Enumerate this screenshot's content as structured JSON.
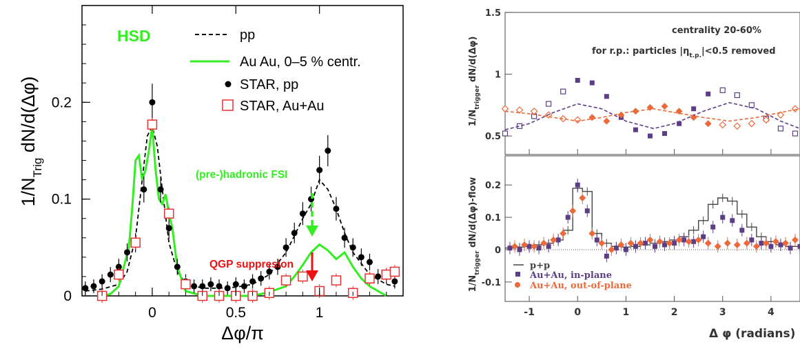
{
  "chart_data": [
    {
      "type": "scatter",
      "title": "",
      "xlabel": "Δφ/π",
      "ylabel": "1/N",
      "ylabel_sub": "Trig",
      "ylabel_rest": " dN/d(Δφ)",
      "xlim": [
        -0.42,
        1.5
      ],
      "ylim": [
        0,
        0.3
      ],
      "xticks": [
        {
          "v": 0,
          "label": "0"
        },
        {
          "v": 0.5,
          "label": "0.5"
        },
        {
          "v": 1,
          "label": "1"
        }
      ],
      "yticks": [
        {
          "v": 0,
          "label": "0"
        },
        {
          "v": 0.1,
          "label": "0.1"
        },
        {
          "v": 0.2,
          "label": "0.2"
        }
      ],
      "model_label": "HSD",
      "legend_placement": "top-right",
      "legend": [
        "pp",
        "Au Au, 0–5 % centr.",
        "STAR, pp",
        "STAR, Au+Au"
      ],
      "annotations": [
        "(pre-)hadronic FSI",
        "QGP suppresion"
      ],
      "colors": {
        "hsd_green": "#33ee22",
        "star_auau": "#e83030",
        "fsi_arrow": "#33ee22",
        "qgp_arrow": "#ee1111"
      },
      "series": [
        {
          "name": "pp",
          "style": "dashed-line",
          "x": [
            -0.4,
            -0.3,
            -0.2,
            -0.15,
            -0.1,
            -0.06,
            -0.03,
            0,
            0.03,
            0.06,
            0.1,
            0.15,
            0.2,
            0.3,
            0.4,
            0.5,
            0.6,
            0.7,
            0.8,
            0.85,
            0.9,
            0.95,
            1.0,
            1.05,
            1.1,
            1.15,
            1.2,
            1.3,
            1.4,
            1.45
          ],
          "y": [
            0.005,
            0.007,
            0.012,
            0.025,
            0.06,
            0.12,
            0.165,
            0.175,
            0.155,
            0.11,
            0.055,
            0.025,
            0.013,
            0.008,
            0.008,
            0.009,
            0.012,
            0.022,
            0.045,
            0.062,
            0.08,
            0.095,
            0.12,
            0.11,
            0.09,
            0.065,
            0.045,
            0.022,
            0.012,
            0.01
          ]
        },
        {
          "name": "Au Au, 0–5 % centr.",
          "style": "solid-line",
          "x": [
            -0.3,
            -0.25,
            -0.2,
            -0.17,
            -0.14,
            -0.12,
            -0.1,
            -0.08,
            -0.06,
            -0.04,
            -0.02,
            0,
            0.02,
            0.04,
            0.06,
            0.08,
            0.1,
            0.12,
            0.15,
            0.2,
            0.3,
            0.5,
            0.6,
            0.7,
            0.8,
            0.85,
            0.9,
            0.95,
            1.0,
            1.05,
            1.1,
            1.15,
            1.2,
            1.25,
            1.3,
            1.4
          ],
          "y": [
            0.0,
            0.002,
            0.01,
            0.03,
            0.05,
            0.09,
            0.14,
            0.145,
            0.12,
            0.13,
            0.15,
            0.175,
            0.13,
            0.1,
            0.095,
            0.105,
            0.085,
            0.07,
            0.03,
            0.005,
            0.0,
            0.0,
            0.0,
            0.004,
            0.01,
            0.02,
            0.032,
            0.045,
            0.053,
            0.047,
            0.038,
            0.045,
            0.03,
            0.018,
            0.01,
            0.0
          ]
        },
        {
          "name": "STAR, pp",
          "style": "filled-circle",
          "x": [
            -0.4,
            -0.35,
            -0.3,
            -0.25,
            -0.2,
            -0.15,
            -0.1,
            -0.05,
            0,
            0.05,
            0.1,
            0.15,
            0.2,
            0.25,
            0.3,
            0.35,
            0.4,
            0.45,
            0.5,
            0.55,
            0.6,
            0.65,
            0.7,
            0.75,
            0.8,
            0.85,
            0.9,
            0.95,
            1.0,
            1.05,
            1.1,
            1.15,
            1.2,
            1.25,
            1.3,
            1.35,
            1.4,
            1.45
          ],
          "y": [
            0.008,
            0.01,
            0.015,
            0.022,
            0.03,
            0.045,
            0.055,
            0.11,
            0.2,
            0.11,
            0.07,
            0.03,
            0.015,
            0.01,
            0.01,
            0.012,
            0.01,
            0.008,
            0.012,
            0.01,
            0.015,
            0.018,
            0.025,
            0.03,
            0.05,
            0.065,
            0.085,
            0.1,
            0.13,
            0.15,
            0.09,
            0.06,
            0.05,
            0.04,
            0.035,
            0.02,
            0.02,
            0.015
          ]
        },
        {
          "name": "STAR, Au+Au",
          "style": "open-square",
          "x": [
            -0.3,
            -0.2,
            -0.1,
            0,
            0.1,
            0.2,
            0.3,
            0.4,
            0.5,
            0.6,
            0.7,
            0.8,
            0.9,
            1.0,
            1.1,
            1.2,
            1.3,
            1.4,
            1.45
          ],
          "y": [
            0.0,
            0.022,
            0.055,
            0.177,
            0.085,
            0.012,
            0.0,
            0.0,
            0.0,
            0.0,
            0.003,
            0.016,
            0.02,
            0.005,
            0.016,
            0.003,
            0.018,
            0.022,
            0.025
          ]
        }
      ]
    },
    {
      "type": "scatter",
      "title": "",
      "xlabel": "Δ φ (radians)",
      "panels": [
        {
          "name": "top",
          "ylabel": "1/N",
          "ylabel_sub": "trigger",
          "ylabel_rest": " dN/d(Δφ)",
          "ylim": [
            0.35,
            1.5
          ],
          "yticks": [
            {
              "v": 0.5,
              "label": "0.5"
            },
            {
              "v": 1,
              "label": "1"
            },
            {
              "v": 1.5,
              "label": "1.5"
            }
          ],
          "annotations": [
            "centrality 20-60%",
            "for r.p.: particles |η",
            "t.p.",
            "|<0.5 removed"
          ],
          "series": [
            {
              "name": "Au+Au, in-plane",
              "style": "filled-square",
              "x": [
                0,
                0.3,
                0.6,
                0.9,
                1.2,
                1.5,
                1.8,
                2.1,
                2.4,
                2.7
              ],
              "y": [
                0.95,
                0.93,
                0.82,
                0.65,
                0.55,
                0.5,
                0.52,
                0.6,
                0.72,
                0.84
              ]
            },
            {
              "name": "in-plane reflected",
              "style": "open-square",
              "x": [
                -1.5,
                -1.2,
                -0.9,
                -0.6,
                -0.3,
                3.0,
                3.3,
                3.6,
                3.9,
                4.2,
                4.5
              ],
              "y": [
                0.52,
                0.58,
                0.66,
                0.76,
                0.86,
                0.87,
                0.83,
                0.75,
                0.64,
                0.56,
                0.52
              ]
            },
            {
              "name": "Au+Au, out-of-plane",
              "style": "filled-diamond",
              "x": [
                0.3,
                0.6,
                0.9,
                1.2,
                1.5,
                1.8,
                2.1,
                2.4,
                2.7
              ],
              "y": [
                0.65,
                0.62,
                0.67,
                0.7,
                0.73,
                0.74,
                0.7,
                0.65,
                0.6
              ]
            },
            {
              "name": "out-of-plane reflected",
              "style": "open-diamond",
              "x": [
                -1.5,
                -1.2,
                -0.9,
                -0.6,
                -0.3,
                0,
                3.0,
                3.3,
                3.6,
                3.9,
                4.2,
                4.5
              ],
              "y": [
                0.72,
                0.71,
                0.7,
                0.67,
                0.64,
                0.63,
                0.59,
                0.58,
                0.6,
                0.63,
                0.67,
                0.72
              ]
            },
            {
              "name": "in-plane flow",
              "style": "dashed-line",
              "x": [
                -1.5,
                -1.0,
                -0.5,
                0,
                0.5,
                1.0,
                1.57,
                2.0,
                2.6,
                3.14,
                3.7,
                4.2,
                4.6
              ],
              "y": [
                0.55,
                0.6,
                0.69,
                0.76,
                0.72,
                0.62,
                0.56,
                0.6,
                0.7,
                0.77,
                0.72,
                0.62,
                0.56
              ]
            },
            {
              "name": "out-of-plane flow",
              "style": "dashed-line",
              "x": [
                -1.5,
                -1.0,
                -0.5,
                0,
                0.5,
                1.0,
                1.57,
                2.0,
                2.6,
                3.14,
                3.7,
                4.2,
                4.6
              ],
              "y": [
                0.7,
                0.68,
                0.65,
                0.62,
                0.65,
                0.69,
                0.72,
                0.69,
                0.65,
                0.62,
                0.65,
                0.69,
                0.72
              ]
            }
          ]
        },
        {
          "name": "bottom",
          "ylabel": "1/N",
          "ylabel_sub": "trigger",
          "ylabel_rest": " dN/d(Δφ)-flow",
          "ylim": [
            -0.16,
            0.29
          ],
          "yticks": [
            {
              "v": -0.1,
              "label": "-0.1"
            },
            {
              "v": 0,
              "label": "0"
            },
            {
              "v": 0.1,
              "label": "0.1"
            },
            {
              "v": 0.2,
              "label": "0.2"
            }
          ],
          "legend": [
            "p+p",
            "Au+Au, in-plane",
            "Au+Au, out-of-plane"
          ],
          "legend_placement": "bottom-left",
          "series": [
            {
              "name": "p+p",
              "style": "step-line",
              "x": [
                -1.4,
                -1.2,
                -1.0,
                -0.8,
                -0.6,
                -0.4,
                -0.2,
                0,
                0.2,
                0.4,
                0.6,
                0.8,
                1.0,
                1.2,
                1.4,
                1.6,
                1.8,
                2.0,
                2.2,
                2.4,
                2.6,
                2.8,
                3.0,
                3.2,
                3.4,
                3.6,
                3.8,
                4.0,
                4.2,
                4.4,
                4.6
              ],
              "y": [
                0.005,
                0.008,
                0.01,
                0.015,
                0.02,
                0.03,
                0.06,
                0.19,
                0.18,
                0.05,
                0.02,
                0.01,
                0.008,
                0.01,
                0.015,
                0.02,
                0.025,
                0.03,
                0.04,
                0.06,
                0.09,
                0.14,
                0.16,
                0.15,
                0.11,
                0.07,
                0.04,
                0.025,
                0.015,
                0.01,
                0.01
              ]
            },
            {
              "name": "Au+Au, in-plane",
              "style": "filled-square",
              "x": [
                -1.4,
                -1.2,
                -1.0,
                -0.8,
                -0.6,
                -0.4,
                -0.2,
                0,
                0.2,
                0.4,
                0.6,
                0.8,
                1.0,
                1.2,
                1.4,
                1.6,
                1.8,
                2.0,
                2.2,
                2.4,
                2.6,
                2.8,
                3.0,
                3.2,
                3.4,
                3.6,
                3.8,
                4.0,
                4.2,
                4.4,
                4.6
              ],
              "y": [
                0.005,
                0.0,
                0.01,
                0.005,
                0.01,
                0.03,
                0.1,
                0.2,
                0.12,
                0.03,
                -0.02,
                0.005,
                0.0,
                0.01,
                0.02,
                0.01,
                0.015,
                0.02,
                0.03,
                0.025,
                0.04,
                0.07,
                0.1,
                0.09,
                0.06,
                0.03,
                0.02,
                0.01,
                0.015,
                0.005,
                0.01
              ]
            },
            {
              "name": "Au+Au, out-of-plane",
              "style": "filled-diamond",
              "x": [
                -1.3,
                -1.1,
                -0.9,
                -0.7,
                -0.5,
                -0.3,
                -0.1,
                0.1,
                0.3,
                0.5,
                0.7,
                0.9,
                1.1,
                1.3,
                1.5,
                1.7,
                1.9,
                2.1,
                2.3,
                2.5,
                2.7,
                2.9,
                3.1,
                3.3,
                3.5,
                3.7,
                3.9,
                4.1,
                4.3,
                4.5
              ],
              "y": [
                0.01,
                0.015,
                0.01,
                0.02,
                0.03,
                0.05,
                0.12,
                0.16,
                0.05,
                0.02,
                0.0,
                0.015,
                0.02,
                0.02,
                0.03,
                0.025,
                0.02,
                0.03,
                0.025,
                0.03,
                0.02,
                0.01,
                0.02,
                0.015,
                0.02,
                0.01,
                0.02,
                0.025,
                0.02,
                0.03
              ]
            }
          ]
        }
      ],
      "xlim": [
        -1.5,
        4.6
      ],
      "xticks": [
        {
          "v": -1,
          "label": "-1"
        },
        {
          "v": 0,
          "label": "0"
        },
        {
          "v": 1,
          "label": "1"
        },
        {
          "v": 2,
          "label": "2"
        },
        {
          "v": 3,
          "label": "3"
        },
        {
          "v": 4,
          "label": "4"
        }
      ],
      "colors": {
        "in_plane": "#5c3d86",
        "out_of_plane": "#ec6a3a",
        "pp": "#444444"
      }
    }
  ]
}
